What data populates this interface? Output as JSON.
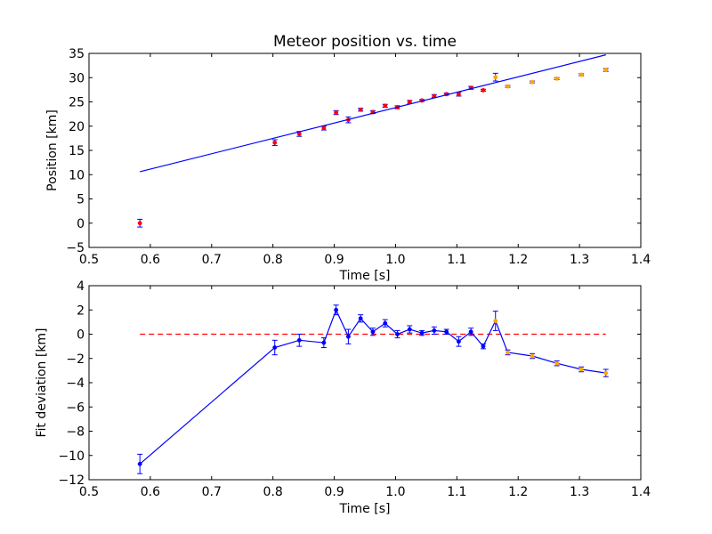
{
  "chart_data": [
    {
      "type": "scatter",
      "title": "Meteor position vs. time",
      "xlabel": "Time [s]",
      "ylabel": "Position [km]",
      "xlim": [
        0.5,
        1.4
      ],
      "ylim": [
        -5,
        35
      ],
      "xticks": [
        0.5,
        0.6,
        0.7,
        0.8,
        0.9,
        1.0,
        1.1,
        1.2,
        1.3,
        1.4
      ],
      "yticks": [
        -5,
        0,
        5,
        10,
        15,
        20,
        25,
        30,
        35
      ],
      "xtick_labels": [
        "0.5",
        "0.6",
        "0.7",
        "0.8",
        "0.9",
        "1.0",
        "1.1",
        "1.2",
        "1.3",
        "1.4"
      ],
      "ytick_labels": [
        "−5",
        "0",
        "5",
        "10",
        "15",
        "20",
        "25",
        "30",
        "35"
      ],
      "grid": false,
      "series": [
        {
          "marker": "point-errorbar",
          "color": "#ff0000",
          "points": [
            {
              "x": 0.583,
              "y": 0.0,
              "err": 0.8
            },
            {
              "x": 0.803,
              "y": 16.6,
              "err": 0.6
            },
            {
              "x": 0.843,
              "y": 18.4,
              "err": 0.5
            },
            {
              "x": 0.883,
              "y": 19.6,
              "err": 0.4
            },
            {
              "x": 0.903,
              "y": 22.8,
              "err": 0.4
            },
            {
              "x": 0.923,
              "y": 21.3,
              "err": 0.6
            },
            {
              "x": 0.943,
              "y": 23.4,
              "err": 0.3
            },
            {
              "x": 0.963,
              "y": 22.9,
              "err": 0.3
            },
            {
              "x": 0.983,
              "y": 24.2,
              "err": 0.3
            },
            {
              "x": 1.003,
              "y": 23.9,
              "err": 0.3
            },
            {
              "x": 1.023,
              "y": 25.0,
              "err": 0.3
            },
            {
              "x": 1.043,
              "y": 25.3,
              "err": 0.2
            },
            {
              "x": 1.063,
              "y": 26.2,
              "err": 0.3
            },
            {
              "x": 1.083,
              "y": 26.6,
              "err": 0.2
            },
            {
              "x": 1.103,
              "y": 26.6,
              "err": 0.4
            },
            {
              "x": 1.123,
              "y": 27.9,
              "err": 0.3
            },
            {
              "x": 1.143,
              "y": 27.4,
              "err": 0.2
            }
          ]
        },
        {
          "marker": "point-errorbar",
          "color": "#ffa500",
          "points": [
            {
              "x": 1.163,
              "y": 30.1,
              "err": 0.8
            },
            {
              "x": 1.183,
              "y": 28.2,
              "err": 0.2
            },
            {
              "x": 1.223,
              "y": 29.1,
              "err": 0.2
            },
            {
              "x": 1.263,
              "y": 29.8,
              "err": 0.2
            },
            {
              "x": 1.303,
              "y": 30.6,
              "err": 0.2
            },
            {
              "x": 1.343,
              "y": 31.6,
              "err": 0.3
            }
          ]
        },
        {
          "type": "line",
          "color": "#0000ff",
          "points": [
            {
              "x": 0.583,
              "y": 10.6
            },
            {
              "x": 1.343,
              "y": 34.7
            }
          ]
        }
      ]
    },
    {
      "type": "line",
      "title": "",
      "xlabel": "Time [s]",
      "ylabel": "Fit deviation [km]",
      "xlim": [
        0.5,
        1.4
      ],
      "ylim": [
        -12,
        4
      ],
      "xticks": [
        0.5,
        0.6,
        0.7,
        0.8,
        0.9,
        1.0,
        1.1,
        1.2,
        1.3,
        1.4
      ],
      "yticks": [
        -12,
        -10,
        -8,
        -6,
        -4,
        -2,
        0,
        2,
        4
      ],
      "xtick_labels": [
        "0.5",
        "0.6",
        "0.7",
        "0.8",
        "0.9",
        "1.0",
        "1.1",
        "1.2",
        "1.3",
        "1.4"
      ],
      "ytick_labels": [
        "−12",
        "−10",
        "−8",
        "−6",
        "−4",
        "−2",
        "0",
        "2",
        "4"
      ],
      "grid": false,
      "reference_line": {
        "y": 0,
        "x_range": [
          0.583,
          1.343
        ],
        "color": "#ff0000",
        "style": "dashed"
      },
      "series": [
        {
          "color": "#0000ff",
          "points": [
            {
              "x": 0.583,
              "y": -10.7,
              "err": 0.8,
              "marker_color": "#0000ff"
            },
            {
              "x": 0.803,
              "y": -1.1,
              "err": 0.6,
              "marker_color": "#0000ff"
            },
            {
              "x": 0.843,
              "y": -0.5,
              "err": 0.5,
              "marker_color": "#0000ff"
            },
            {
              "x": 0.883,
              "y": -0.7,
              "err": 0.4,
              "marker_color": "#0000ff"
            },
            {
              "x": 0.903,
              "y": 2.0,
              "err": 0.4,
              "marker_color": "#0000ff"
            },
            {
              "x": 0.923,
              "y": -0.2,
              "err": 0.6,
              "marker_color": "#0000ff"
            },
            {
              "x": 0.943,
              "y": 1.3,
              "err": 0.3,
              "marker_color": "#0000ff"
            },
            {
              "x": 0.963,
              "y": 0.2,
              "err": 0.3,
              "marker_color": "#0000ff"
            },
            {
              "x": 0.983,
              "y": 0.9,
              "err": 0.3,
              "marker_color": "#0000ff"
            },
            {
              "x": 1.003,
              "y": 0.0,
              "err": 0.3,
              "marker_color": "#0000ff"
            },
            {
              "x": 1.023,
              "y": 0.4,
              "err": 0.3,
              "marker_color": "#0000ff"
            },
            {
              "x": 1.043,
              "y": 0.1,
              "err": 0.2,
              "marker_color": "#0000ff"
            },
            {
              "x": 1.063,
              "y": 0.3,
              "err": 0.3,
              "marker_color": "#0000ff"
            },
            {
              "x": 1.083,
              "y": 0.2,
              "err": 0.2,
              "marker_color": "#0000ff"
            },
            {
              "x": 1.103,
              "y": -0.6,
              "err": 0.4,
              "marker_color": "#0000ff"
            },
            {
              "x": 1.123,
              "y": 0.2,
              "err": 0.3,
              "marker_color": "#0000ff"
            },
            {
              "x": 1.143,
              "y": -1.0,
              "err": 0.2,
              "marker_color": "#0000ff"
            },
            {
              "x": 1.163,
              "y": 1.1,
              "err": 0.8,
              "marker_color": "#ffa500"
            },
            {
              "x": 1.183,
              "y": -1.5,
              "err": 0.2,
              "marker_color": "#ffa500"
            },
            {
              "x": 1.223,
              "y": -1.8,
              "err": 0.2,
              "marker_color": "#ffa500"
            },
            {
              "x": 1.263,
              "y": -2.4,
              "err": 0.2,
              "marker_color": "#ffa500"
            },
            {
              "x": 1.303,
              "y": -2.9,
              "err": 0.2,
              "marker_color": "#ffa500"
            },
            {
              "x": 1.343,
              "y": -3.2,
              "err": 0.3,
              "marker_color": "#ffa500"
            }
          ]
        }
      ]
    }
  ]
}
